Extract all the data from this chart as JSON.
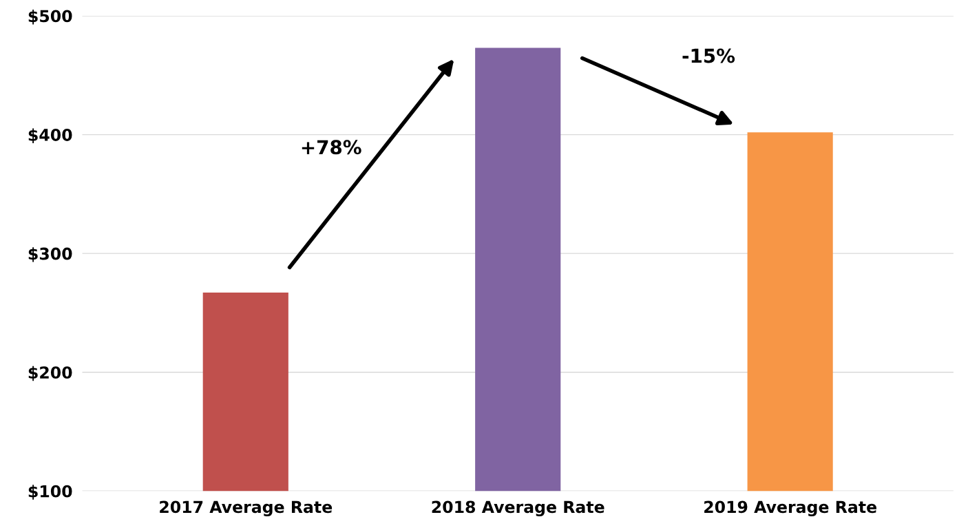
{
  "chart_data": {
    "type": "bar",
    "categories": [
      "2017 Average Rate",
      "2018 Average Rate",
      "2019 Average Rate"
    ],
    "values": [
      267,
      473,
      402
    ],
    "colors": [
      "#c0504d",
      "#8064a2",
      "#f79646"
    ],
    "ylim": [
      100,
      500
    ],
    "yticks": [
      {
        "value": 100,
        "label": "$100"
      },
      {
        "value": 200,
        "label": "$200"
      },
      {
        "value": 300,
        "label": "$300"
      },
      {
        "value": 400,
        "label": "$400"
      },
      {
        "value": 500,
        "label": "$500"
      }
    ],
    "grid": "y",
    "annotations": [
      "+78%",
      "-15%"
    ]
  }
}
